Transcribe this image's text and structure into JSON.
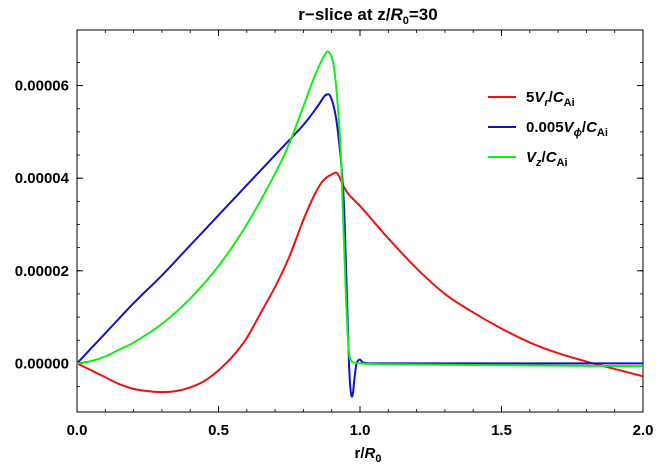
{
  "chart_data": {
    "type": "line",
    "title": {
      "prefix": "r−slice at z/",
      "symbol": "R",
      "sub": "0",
      "suffix": "=30"
    },
    "xlabel": {
      "prefix": "r/",
      "symbol": "R",
      "sub": "0"
    },
    "ylabel": "",
    "xlim": [
      0.0,
      2.0
    ],
    "ylim": [
      -1.05e-05,
      7.2e-05
    ],
    "x_ticks": [
      "0.0",
      "0.5",
      "1.0",
      "1.5",
      "2.0"
    ],
    "x_tick_values": [
      0.0,
      0.5,
      1.0,
      1.5,
      2.0
    ],
    "y_ticks": [
      "0.00000",
      "0.00002",
      "0.00004",
      "0.00006"
    ],
    "y_tick_values": [
      0.0,
      2e-05,
      4e-05,
      6e-05
    ],
    "grid": false,
    "legend_position": "top-right",
    "series": [
      {
        "name": "5V_r/C_Ai",
        "legend": {
          "coef": "5",
          "sym": "V",
          "sub": "r",
          "den": "C",
          "den_sub": "Ai"
        },
        "color": "#ee1111",
        "x": [
          0.0,
          0.05,
          0.1,
          0.15,
          0.2,
          0.25,
          0.3,
          0.35,
          0.4,
          0.45,
          0.5,
          0.55,
          0.6,
          0.65,
          0.7,
          0.75,
          0.8,
          0.84,
          0.87,
          0.9,
          0.92,
          0.94,
          0.96,
          1.0,
          1.05,
          1.1,
          1.2,
          1.3,
          1.4,
          1.5,
          1.6,
          1.7,
          1.8,
          1.9,
          2.0
        ],
        "y": [
          0.0,
          -1.5e-06,
          -3e-06,
          -4.5e-06,
          -5.5e-06,
          -6e-06,
          -6.2e-06,
          -6e-06,
          -5.2e-06,
          -3.8e-06,
          -1.5e-06,
          1.5e-06,
          5.5e-06,
          1.1e-05,
          1.65e-05,
          2.3e-05,
          3.1e-05,
          3.65e-05,
          3.95e-05,
          4.08e-05,
          4.1e-05,
          3.85e-05,
          3.65e-05,
          3.4e-05,
          3.05e-05,
          2.7e-05,
          2.05e-05,
          1.5e-05,
          1.1e-05,
          7.5e-06,
          4.5e-06,
          2.2e-06,
          4e-07,
          -1.2e-06,
          -2.8e-06
        ]
      },
      {
        "name": "0.005V_phi/C_Ai",
        "legend": {
          "coef": "0.005",
          "sym": "V",
          "sub": "ϕ",
          "den": "C",
          "den_sub": "Ai"
        },
        "color": "#1111cc",
        "x": [
          0.0,
          0.1,
          0.2,
          0.3,
          0.4,
          0.5,
          0.6,
          0.7,
          0.8,
          0.85,
          0.88,
          0.9,
          0.92,
          0.94,
          0.95,
          0.96,
          0.965,
          0.97,
          0.975,
          0.98,
          0.985,
          0.99,
          1.0,
          1.01,
          1.03,
          1.05,
          1.1,
          1.5,
          2.0
        ],
        "y": [
          0.0,
          6.5e-06,
          1.3e-05,
          1.9e-05,
          2.55e-05,
          3.2e-05,
          3.85e-05,
          4.5e-05,
          5.15e-05,
          5.55e-05,
          5.8e-05,
          5.7e-05,
          5.1e-05,
          3.8e-05,
          2.2e-05,
          2e-06,
          -4.5e-06,
          -7e-06,
          -6.5e-06,
          -3.5e-06,
          -1e-06,
          3e-07,
          8e-07,
          2e-07,
          0.0,
          0.0,
          0.0,
          0.0,
          0.0
        ]
      },
      {
        "name": "V_z/C_Ai",
        "legend": {
          "coef": "",
          "sym": "V",
          "sub": "z",
          "den": "C",
          "den_sub": "Ai"
        },
        "color": "#11ee11",
        "x": [
          0.0,
          0.05,
          0.1,
          0.15,
          0.2,
          0.3,
          0.4,
          0.5,
          0.6,
          0.7,
          0.75,
          0.8,
          0.84,
          0.87,
          0.89,
          0.91,
          0.93,
          0.94,
          0.95,
          0.96,
          0.97,
          0.98,
          1.0,
          1.1,
          1.5,
          2.0
        ],
        "y": [
          0.0,
          5e-07,
          1.5e-06,
          3e-06,
          4.5e-06,
          8.5e-06,
          1.4e-05,
          2.1e-05,
          3e-05,
          4.1e-05,
          4.75e-05,
          5.55e-05,
          6.2e-05,
          6.6e-05,
          6.72e-05,
          6.3e-05,
          4.8e-05,
          3.2e-05,
          1.5e-05,
          3e-06,
          5e-07,
          2e-07,
          0.0,
          -2e-07,
          -4e-07,
          -6e-07
        ]
      }
    ]
  }
}
